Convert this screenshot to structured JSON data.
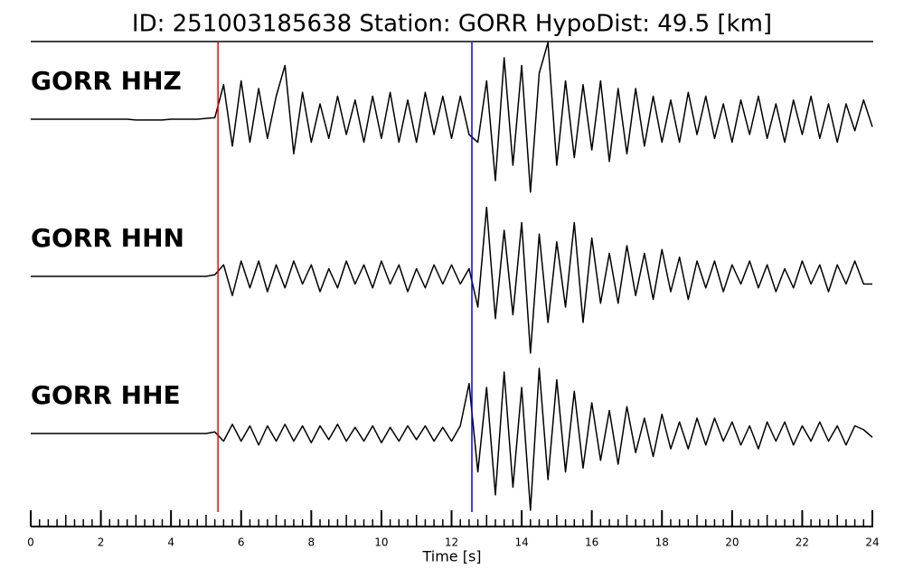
{
  "chart_data": {
    "type": "seismogram",
    "title": "ID: 251003185638   Station: GORR   HypoDist:    49.5 [km]",
    "xlabel": "Time [s]",
    "xlim": [
      0,
      24
    ],
    "xticks": [
      0,
      2,
      4,
      6,
      8,
      10,
      12,
      14,
      16,
      18,
      20,
      22,
      24
    ],
    "xminor_step": 0.25,
    "ylim": [
      -1,
      1
    ],
    "label_color": "#4c9a0e",
    "line_color": "#000000",
    "markers": [
      {
        "x": 5.34,
        "color": "#ff0000"
      },
      {
        "x": 12.58,
        "color": "#0000ff"
      }
    ],
    "x": [
      0,
      0.25,
      0.5,
      0.75,
      1,
      1.25,
      1.5,
      1.75,
      2,
      2.25,
      2.5,
      2.75,
      3,
      3.25,
      3.5,
      3.75,
      4,
      4.25,
      4.5,
      4.75,
      5,
      5.25,
      5.5,
      5.75,
      6,
      6.25,
      6.5,
      6.75,
      7,
      7.25,
      7.5,
      7.75,
      8,
      8.25,
      8.5,
      8.75,
      9,
      9.25,
      9.5,
      9.75,
      10,
      10.25,
      10.5,
      10.75,
      11,
      11.25,
      11.5,
      11.75,
      12,
      12.25,
      12.5,
      12.75,
      13,
      13.25,
      13.5,
      13.75,
      14,
      14.25,
      14.5,
      14.75,
      15,
      15.25,
      15.5,
      15.75,
      16,
      16.25,
      16.5,
      16.75,
      17,
      17.25,
      17.5,
      17.75,
      18,
      18.25,
      18.5,
      18.75,
      19,
      19.25,
      19.5,
      19.75,
      20,
      20.25,
      20.5,
      20.75,
      21,
      21.25,
      21.5,
      21.75,
      22,
      22.25,
      22.5,
      22.75,
      23,
      23.25,
      23.5,
      23.75,
      24
    ],
    "series": [
      {
        "name": "GORR HHZ",
        "values": [
          0,
          0,
          0,
          0,
          0,
          0,
          0,
          0,
          0,
          0,
          0,
          0,
          -0.01,
          -0.01,
          -0.01,
          -0.01,
          0,
          0,
          0,
          0,
          0.01,
          0.02,
          0.45,
          -0.35,
          0.5,
          -0.3,
          0.4,
          -0.25,
          0.3,
          0.7,
          -0.45,
          0.35,
          -0.3,
          0.2,
          -0.25,
          0.3,
          -0.2,
          0.25,
          -0.3,
          0.3,
          -0.25,
          0.35,
          -0.3,
          0.25,
          -0.3,
          0.35,
          -0.2,
          0.3,
          -0.25,
          0.3,
          -0.2,
          -0.3,
          0.5,
          -0.8,
          0.8,
          -0.6,
          0.7,
          -0.95,
          0.6,
          1.0,
          -0.6,
          0.5,
          -0.5,
          0.45,
          -0.4,
          0.5,
          -0.55,
          0.4,
          -0.45,
          0.4,
          -0.35,
          0.3,
          -0.3,
          0.25,
          -0.3,
          0.35,
          -0.2,
          0.3,
          -0.25,
          0.2,
          -0.3,
          0.25,
          -0.2,
          0.3,
          -0.25,
          0.2,
          -0.3,
          0.25,
          -0.2,
          0.3,
          -0.25,
          0.2,
          -0.3,
          0.2,
          -0.15,
          0.25,
          -0.1
        ]
      },
      {
        "name": "GORR HHN",
        "values": [
          0,
          0,
          0,
          0,
          0,
          0,
          0,
          0,
          0,
          0,
          0,
          0,
          0,
          0,
          0,
          0,
          0,
          0,
          0,
          0,
          0,
          0.02,
          0.15,
          -0.25,
          0.2,
          -0.15,
          0.2,
          -0.2,
          0.15,
          -0.15,
          0.2,
          -0.1,
          0.15,
          -0.2,
          0.1,
          -0.15,
          0.2,
          -0.1,
          0.15,
          -0.15,
          0.2,
          -0.1,
          0.15,
          -0.2,
          0.1,
          -0.15,
          0.15,
          -0.1,
          0.15,
          -0.1,
          0.1,
          -0.4,
          0.9,
          -0.55,
          0.6,
          -0.5,
          0.7,
          -1.0,
          0.55,
          -0.6,
          0.45,
          -0.4,
          0.7,
          -0.6,
          0.5,
          -0.35,
          0.3,
          -0.35,
          0.4,
          -0.25,
          0.3,
          -0.3,
          0.35,
          -0.2,
          0.25,
          -0.3,
          0.2,
          -0.15,
          0.2,
          -0.2,
          0.15,
          -0.1,
          0.2,
          -0.15,
          0.15,
          -0.2,
          0.1,
          -0.15,
          0.2,
          -0.1,
          0.15,
          -0.2,
          0.15,
          -0.1,
          0.2,
          -0.1,
          -0.1
        ]
      },
      {
        "name": "GORR HHE",
        "values": [
          0,
          0,
          0,
          0,
          0,
          0,
          0,
          0,
          0,
          0,
          0,
          0,
          0,
          0,
          0,
          0,
          0,
          0,
          0,
          0,
          0,
          0.02,
          -0.1,
          0.12,
          -0.1,
          0.1,
          -0.15,
          0.1,
          -0.1,
          0.12,
          -0.1,
          0.1,
          -0.12,
          0.1,
          -0.08,
          0.12,
          -0.1,
          0.08,
          -0.1,
          0.1,
          -0.12,
          0.08,
          -0.1,
          0.1,
          -0.08,
          0.1,
          -0.1,
          0.08,
          -0.1,
          0.1,
          0.65,
          -0.5,
          0.6,
          -0.8,
          0.8,
          -0.7,
          0.6,
          -1.0,
          0.85,
          -0.6,
          0.7,
          -0.5,
          0.55,
          -0.45,
          0.4,
          -0.35,
          0.3,
          -0.4,
          0.35,
          -0.25,
          0.2,
          -0.3,
          0.25,
          -0.2,
          0.15,
          -0.2,
          0.2,
          -0.15,
          0.2,
          -0.1,
          0.15,
          -0.15,
          0.1,
          -0.2,
          0.15,
          -0.1,
          0.15,
          -0.15,
          0.1,
          -0.1,
          0.15,
          -0.1,
          0.1,
          -0.15,
          0.1,
          0.05,
          -0.05
        ]
      }
    ]
  }
}
